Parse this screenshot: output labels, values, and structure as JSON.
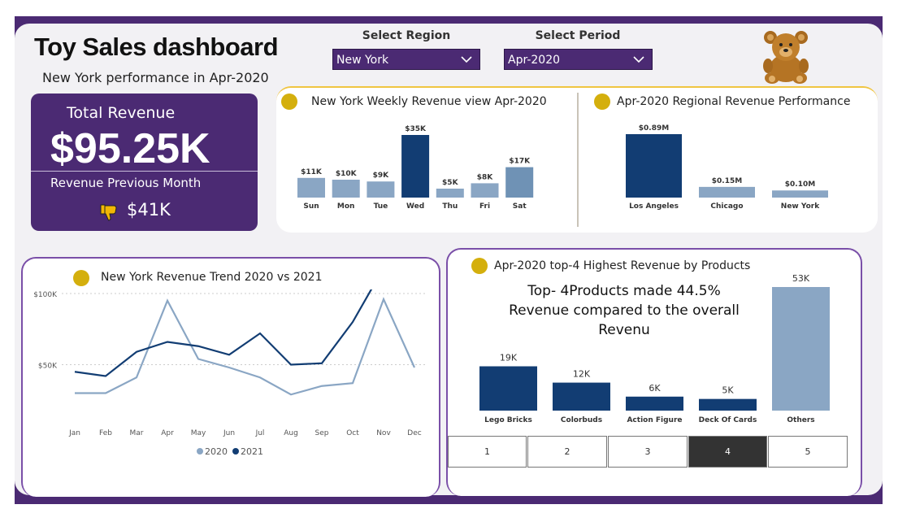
{
  "header": {
    "title": "Toy Sales dashboard",
    "subtitle": "New York performance in Apr-2020"
  },
  "filters": {
    "region": {
      "label": "Select Region",
      "value": "New York"
    },
    "period": {
      "label": "Select Period",
      "value": "Apr-2020"
    }
  },
  "kpi": {
    "total_label": "Total Revenue",
    "total_value": "$95.25K",
    "prev_label": "Revenue Previous Month",
    "prev_value": "$41K"
  },
  "colors": {
    "brand_purple": "#4b2a73",
    "dark_blue": "#123d73",
    "light_blue": "#8aa6c4",
    "mid_blue": "#6f92b5",
    "gold": "#d4af0d"
  },
  "icons": {
    "kpi_trend": "thumbs-down-icon",
    "mascot": "teddy-bear-icon"
  },
  "chart_data": [
    {
      "id": "weekly",
      "type": "bar",
      "title": "New York Weekly Revenue view Apr-2020",
      "categories": [
        "Sun",
        "Mon",
        "Tue",
        "Wed",
        "Thu",
        "Fri",
        "Sat"
      ],
      "values": [
        11,
        10,
        9,
        35,
        5,
        8,
        17
      ],
      "labels": [
        "$11K",
        "$10K",
        "$9K",
        "$35K",
        "$5K",
        "$8K",
        "$17K"
      ],
      "highlight": "Wed",
      "ylim": [
        0,
        35
      ]
    },
    {
      "id": "regional",
      "type": "bar",
      "title": "Apr-2020 Regional Revenue Performance",
      "categories": [
        "Los Angeles",
        "Chicago",
        "New York"
      ],
      "values": [
        0.89,
        0.15,
        0.1
      ],
      "labels": [
        "$0.89M",
        "$0.15M",
        "$0.10M"
      ],
      "highlight": "Los Angeles",
      "ylim": [
        0,
        0.89
      ]
    },
    {
      "id": "trend",
      "type": "line",
      "title": "New York Revenue Trend 2020 vs 2021",
      "categories": [
        "Jan",
        "Feb",
        "Mar",
        "Apr",
        "May",
        "Jun",
        "Jul",
        "Aug",
        "Sep",
        "Oct",
        "Nov",
        "Dec"
      ],
      "y_ticks": [
        50,
        100
      ],
      "y_tick_labels": [
        "$50K",
        "$100K"
      ],
      "ylim": [
        0,
        120
      ],
      "series": [
        {
          "name": "2020",
          "color": "#8aa6c4",
          "values": [
            30,
            30,
            41,
            95,
            54,
            48,
            41,
            29,
            35,
            37,
            96,
            48
          ]
        },
        {
          "name": "2021",
          "color": "#123d73",
          "values": [
            45,
            42,
            59,
            66,
            63,
            57,
            72,
            50,
            51,
            80,
            118,
            null
          ]
        }
      ],
      "legend": "bottom"
    },
    {
      "id": "products",
      "type": "bar",
      "title": "Apr-2020 top-4 Highest Revenue by Products",
      "categories": [
        "Lego Bricks",
        "Colorbuds",
        "Action Figure",
        "Deck Of Cards",
        "Others"
      ],
      "values": [
        19,
        12,
        6,
        5,
        53
      ],
      "labels": [
        "19K",
        "12K",
        "6K",
        "5K",
        "53K"
      ],
      "ylim": [
        0,
        53
      ]
    }
  ],
  "products_panel": {
    "insight": "Top- 4Products made 44.5% Revenue compared to the overall Revenu",
    "pager": [
      "1",
      "2",
      "3",
      "4",
      "5"
    ],
    "active_page": "4"
  }
}
